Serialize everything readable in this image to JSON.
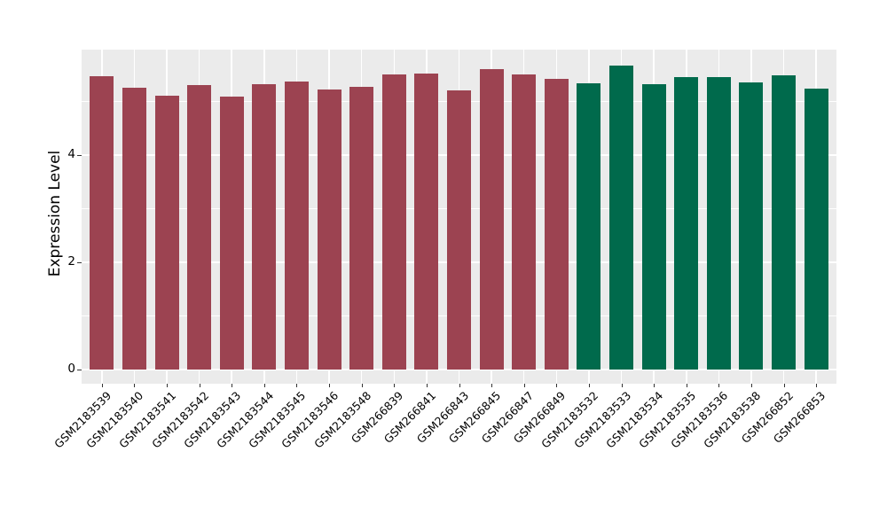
{
  "figure": {
    "background": "#ffffff",
    "panel_background": "#EBEBEB",
    "gridline_color": "#ffffff",
    "tick_color": "#333333",
    "text_color": "#000000"
  },
  "chart_data": {
    "type": "bar",
    "title": "",
    "xlabel": "",
    "ylabel": "Expression Level",
    "legend": "none",
    "grid": true,
    "ylim": [
      -0.28,
      5.95
    ],
    "yticks": [
      0,
      2,
      4
    ],
    "minor_yticks": [
      1,
      3,
      5
    ],
    "categories": [
      "GSM2183539",
      "GSM2183540",
      "GSM2183541",
      "GSM2183542",
      "GSM2183543",
      "GSM2183544",
      "GSM2183545",
      "GSM2183546",
      "GSM2183548",
      "GSM266839",
      "GSM266841",
      "GSM266843",
      "GSM266845",
      "GSM266847",
      "GSM266849",
      "GSM2183532",
      "GSM2183533",
      "GSM2183534",
      "GSM2183535",
      "GSM2183536",
      "GSM2183538",
      "GSM266852",
      "GSM266853"
    ],
    "values": [
      5.46,
      5.24,
      5.1,
      5.3,
      5.09,
      5.32,
      5.36,
      5.21,
      5.27,
      5.49,
      5.52,
      5.2,
      5.6,
      5.49,
      5.42,
      5.33,
      5.66,
      5.31,
      5.44,
      5.44,
      5.34,
      5.48,
      5.23
    ],
    "groups": [
      "group1",
      "group1",
      "group1",
      "group1",
      "group1",
      "group1",
      "group1",
      "group1",
      "group1",
      "group1",
      "group1",
      "group1",
      "group1",
      "group1",
      "group1",
      "group2",
      "group2",
      "group2",
      "group2",
      "group2",
      "group2",
      "group2",
      "group2"
    ],
    "group_colors": {
      "group1": "#9C4351",
      "group2": "#006A4C"
    }
  }
}
